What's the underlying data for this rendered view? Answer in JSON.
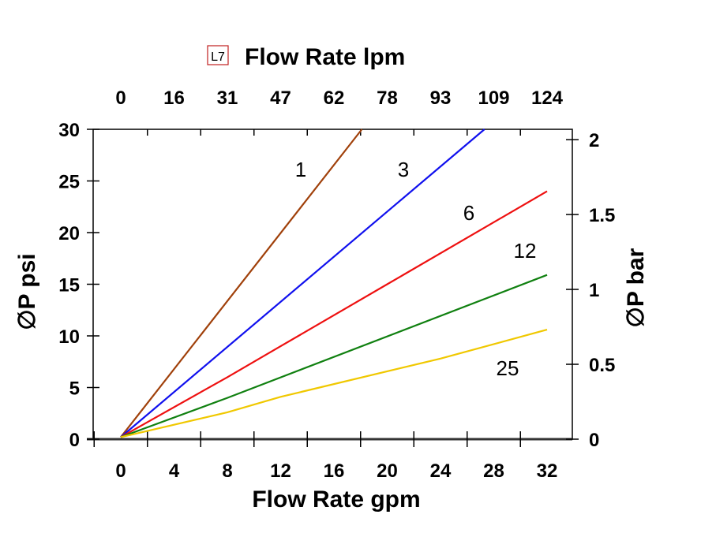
{
  "chart_data": {
    "type": "line",
    "badge": "L7",
    "top_axis": {
      "label": "Flow Rate lpm",
      "ticks": [
        "0",
        "16",
        "31",
        "47",
        "62",
        "78",
        "93",
        "109",
        "124"
      ]
    },
    "xlabel": "Flow Rate gpm",
    "xticks": [
      "0",
      "4",
      "8",
      "12",
      "16",
      "20",
      "24",
      "28",
      "32"
    ],
    "xlim": [
      -2,
      34
    ],
    "ylabel": "∅P psi",
    "yticks": [
      "0",
      "5",
      "10",
      "15",
      "20",
      "25",
      "30"
    ],
    "ylim": [
      0,
      30
    ],
    "right_axis": {
      "label": "∅P bar",
      "ticks": [
        "0",
        "0.5",
        "1",
        "1.5",
        "2"
      ],
      "psi_per_bar": 14.5
    },
    "grid": false,
    "series": [
      {
        "name": "1",
        "color": "#a0400a",
        "points": [
          [
            0,
            0.2
          ],
          [
            18.1,
            30
          ]
        ]
      },
      {
        "name": "3",
        "color": "#1010ee",
        "points": [
          [
            0,
            0.2
          ],
          [
            27.3,
            30
          ]
        ]
      },
      {
        "name": "6",
        "color": "#ee1010",
        "points": [
          [
            0,
            0.2
          ],
          [
            8,
            6
          ],
          [
            12,
            9
          ],
          [
            20,
            15
          ],
          [
            32,
            24
          ]
        ]
      },
      {
        "name": "12",
        "color": "#108010",
        "points": [
          [
            0,
            0.2
          ],
          [
            8,
            4
          ],
          [
            32,
            15.9
          ]
        ]
      },
      {
        "name": "25",
        "color": "#f0c800",
        "points": [
          [
            0,
            0.2
          ],
          [
            8,
            2.6
          ],
          [
            12,
            4.1
          ],
          [
            24,
            7.8
          ],
          [
            32,
            10.6
          ]
        ]
      }
    ]
  }
}
